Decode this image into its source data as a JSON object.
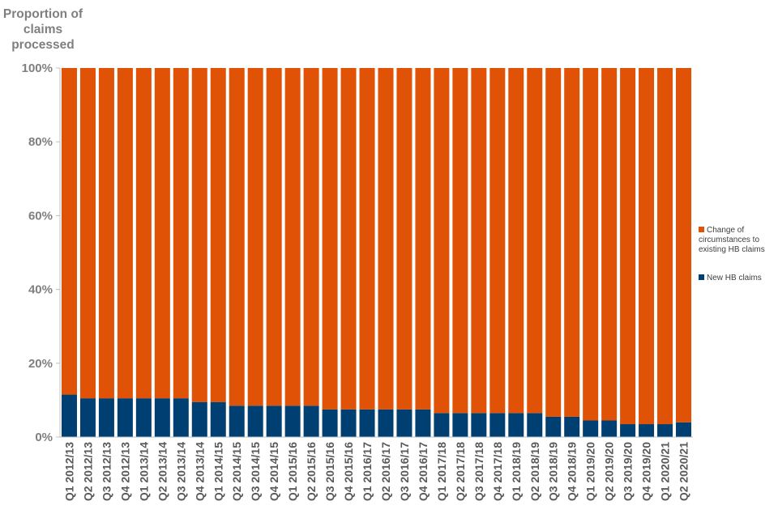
{
  "chart_data": {
    "type": "bar",
    "stacked": true,
    "ylabel": "Proportion of claims processed",
    "ylim": [
      0,
      100
    ],
    "yticks": [
      "0%",
      "20%",
      "40%",
      "60%",
      "80%",
      "100%"
    ],
    "legend_position": "right",
    "categories": [
      "Q1 2012/13",
      "Q2 2012/13",
      "Q3 2012/13",
      "Q4 2012/13",
      "Q1 2013/14",
      "Q2 2013/14",
      "Q3 2013/14",
      "Q4 2013/14",
      "Q1 2014/15",
      "Q2 2014/15",
      "Q3 2014/15",
      "Q4 2014/15",
      "Q1 2015/16",
      "Q2 2015/16",
      "Q3 2015/16",
      "Q4 2015/16",
      "Q1 2016/17",
      "Q2 2016/17",
      "Q3 2016/17",
      "Q4 2016/17",
      "Q1 2017/18",
      "Q2 2017/18",
      "Q3 2017/18",
      "Q4 2017/18",
      "Q1 2018/19",
      "Q2 2018/19",
      "Q3 2018/19",
      "Q4 2018/19",
      "Q1 2019/20",
      "Q2 2019/20",
      "Q3 2019/20",
      "Q4 2019/20",
      "Q1 2020/21",
      "Q2 2020/21"
    ],
    "series": [
      {
        "name": "New HB claims",
        "color": "#003f72",
        "values": [
          11.5,
          10.5,
          10.5,
          10.5,
          10.5,
          10.5,
          10.5,
          9.5,
          9.5,
          8.5,
          8.5,
          8.5,
          8.5,
          8.5,
          7.5,
          7.5,
          7.5,
          7.5,
          7.5,
          7.5,
          6.5,
          6.5,
          6.5,
          6.5,
          6.5,
          6.5,
          5.5,
          5.5,
          4.5,
          4.5,
          3.5,
          3.5,
          3.5,
          4.0
        ]
      },
      {
        "name": "Change of circumstances to existing HB claims",
        "color": "#e05206",
        "values": [
          88.5,
          89.5,
          89.5,
          89.5,
          89.5,
          89.5,
          89.5,
          90.5,
          90.5,
          91.5,
          91.5,
          91.5,
          91.5,
          91.5,
          92.5,
          92.5,
          92.5,
          92.5,
          92.5,
          92.5,
          93.5,
          93.5,
          93.5,
          93.5,
          93.5,
          93.5,
          94.5,
          94.5,
          95.5,
          95.5,
          96.5,
          96.5,
          96.5,
          96.0
        ]
      }
    ]
  }
}
